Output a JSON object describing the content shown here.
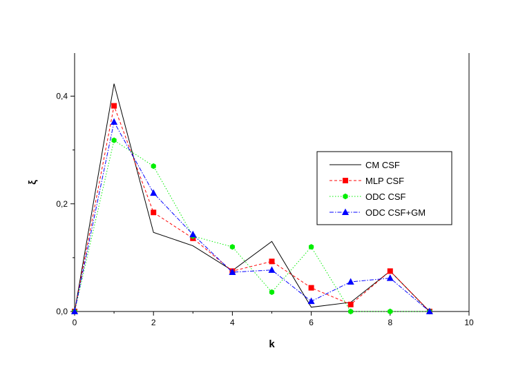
{
  "chart_data": {
    "type": "line",
    "title": "",
    "xlabel": "k",
    "ylabel": "ξ",
    "xlim": [
      0,
      10
    ],
    "ylim": [
      0,
      0.48
    ],
    "x_ticks": [
      0,
      2,
      4,
      6,
      8,
      10
    ],
    "x_tick_labels": [
      "0",
      "2",
      "4",
      "6",
      "8",
      "10"
    ],
    "y_ticks": [
      0.0,
      0.2,
      0.4
    ],
    "y_tick_labels": [
      "0,0",
      "0,2",
      "0,4"
    ],
    "grid": false,
    "legend_position": "right",
    "x": [
      0,
      1,
      2,
      3,
      4,
      5,
      6,
      7,
      8,
      9
    ],
    "series": [
      {
        "name": "CM CSF",
        "color": "#000000",
        "dash": "solid",
        "marker": "none",
        "values": [
          0.0,
          0.423,
          0.147,
          0.122,
          0.076,
          0.13,
          0.008,
          0.017,
          0.075,
          0.0
        ]
      },
      {
        "name": "MLP CSF",
        "color": "#ff0000",
        "dash": "dash",
        "marker": "square",
        "values": [
          0.0,
          0.382,
          0.184,
          0.136,
          0.075,
          0.093,
          0.044,
          0.013,
          0.075,
          0.0
        ]
      },
      {
        "name": "ODC CSF",
        "color": "#00ee00",
        "dash": "dot",
        "marker": "hexagon",
        "values": [
          0.0,
          0.318,
          0.27,
          0.14,
          0.12,
          0.036,
          0.12,
          0.0,
          0.0,
          0.0
        ]
      },
      {
        "name": "ODC CSF+GM",
        "color": "#0000ff",
        "dash": "dashdot",
        "marker": "triangle",
        "values": [
          0.0,
          0.352,
          0.22,
          0.143,
          0.073,
          0.077,
          0.019,
          0.055,
          0.062,
          0.0
        ]
      }
    ]
  }
}
